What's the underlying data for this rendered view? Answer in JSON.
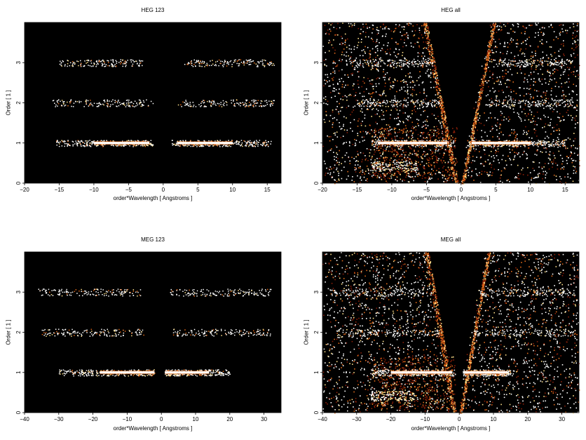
{
  "chart_data": [
    {
      "type": "heatmap",
      "title": "HEG 123",
      "xlabel": "order*Wavelength [ Angstroms ]",
      "ylabel": "Order [ 1 ]",
      "xlim": [
        -20,
        17
      ],
      "ylim": [
        0,
        4
      ],
      "xticks": [
        "−20",
        "−15",
        "−10",
        "−5",
        "0",
        "5",
        "10",
        "15"
      ],
      "xtick_values": [
        -20,
        -15,
        -10,
        -5,
        0,
        5,
        10,
        15
      ],
      "yticks": [
        "0",
        "1",
        "2",
        "3"
      ],
      "ytick_values": [
        0,
        1,
        2,
        3
      ],
      "bands": [
        {
          "order": 1,
          "x_ranges": [
            [
              -15.5,
              -1.5
            ],
            [
              1.2,
              15.5
            ]
          ],
          "bright_ranges": [
            [
              -10,
              -2
            ],
            [
              2,
              10
            ]
          ]
        },
        {
          "order": 2,
          "x_ranges": [
            [
              -16,
              -1.5
            ],
            [
              2,
              16
            ]
          ],
          "bright_ranges": []
        },
        {
          "order": 3,
          "x_ranges": [
            [
              -15,
              -3
            ],
            [
              3,
              16
            ]
          ],
          "bright_ranges": []
        }
      ],
      "background": "none"
    },
    {
      "type": "heatmap",
      "title": "HEG all",
      "xlabel": "order*Wavelength [ Angstroms ]",
      "ylabel": "Order [ 1 ]",
      "xlim": [
        -20,
        17
      ],
      "ylim": [
        0,
        4
      ],
      "xticks": [
        "−20",
        "−15",
        "−10",
        "−5",
        "0",
        "5",
        "10",
        "15"
      ],
      "xtick_values": [
        -20,
        -15,
        -10,
        -5,
        0,
        5,
        10,
        15
      ],
      "yticks": [
        "0",
        "1",
        "2",
        "3"
      ],
      "ytick_values": [
        0,
        1,
        2,
        3
      ],
      "bands": [
        {
          "order": 1,
          "x_ranges": [
            [
              -13,
              -1
            ],
            [
              1,
              15
            ]
          ],
          "bright_ranges": [
            [
              -12,
              -2
            ],
            [
              1.5,
              10
            ]
          ]
        },
        {
          "order": 2,
          "x_ranges": [
            [
              -15,
              -3
            ],
            [
              4,
              16
            ]
          ],
          "bright_ranges": []
        },
        {
          "order": 3,
          "x_ranges": [
            [
              -16,
              -4
            ],
            [
              5,
              16
            ]
          ],
          "bright_ranges": []
        }
      ],
      "background": "scatter"
    },
    {
      "type": "heatmap",
      "title": "MEG 123",
      "xlabel": "order*Wavelength [ Angstroms ]",
      "ylabel": "Order [ 1 ]",
      "xlim": [
        -40,
        35
      ],
      "ylim": [
        0,
        4
      ],
      "xticks": [
        "−40",
        "−30",
        "−20",
        "−10",
        "0",
        "10",
        "20",
        "30"
      ],
      "xtick_values": [
        -40,
        -30,
        -20,
        -10,
        0,
        10,
        20,
        30
      ],
      "yticks": [
        "0",
        "1",
        "2",
        "3"
      ],
      "ytick_values": [
        0,
        1,
        2,
        3
      ],
      "bands": [
        {
          "order": 1,
          "x_ranges": [
            [
              -30,
              -2
            ],
            [
              1,
              20
            ]
          ],
          "bright_ranges": [
            [
              -18,
              -2
            ],
            [
              1,
              14
            ]
          ]
        },
        {
          "order": 2,
          "x_ranges": [
            [
              -35,
              -5
            ],
            [
              3,
              32
            ]
          ],
          "bright_ranges": []
        },
        {
          "order": 3,
          "x_ranges": [
            [
              -36,
              -6
            ],
            [
              2,
              32
            ]
          ],
          "bright_ranges": []
        }
      ],
      "background": "none"
    },
    {
      "type": "heatmap",
      "title": "MEG all",
      "xlabel": "order*Wavelength [ Angstroms ]",
      "ylabel": "Order [ 1 ]",
      "xlim": [
        -40,
        35
      ],
      "ylim": [
        0,
        4
      ],
      "xticks": [
        "−40",
        "−30",
        "−20",
        "−10",
        "0",
        "10",
        "20",
        "30"
      ],
      "xtick_values": [
        -40,
        -30,
        -20,
        -10,
        0,
        10,
        20,
        30
      ],
      "yticks": [
        "0",
        "1",
        "2",
        "3"
      ],
      "ytick_values": [
        0,
        1,
        2,
        3
      ],
      "bands": [
        {
          "order": 1,
          "x_ranges": [
            [
              -26,
              -1
            ],
            [
              1,
              15
            ]
          ],
          "bright_ranges": [
            [
              -20,
              -2
            ],
            [
              1.5,
              14
            ]
          ]
        },
        {
          "order": 2,
          "x_ranges": [
            [
              -36,
              -6
            ],
            [
              4,
              34
            ]
          ],
          "bright_ranges": []
        },
        {
          "order": 3,
          "x_ranges": [
            [
              -38,
              -8
            ],
            [
              6,
              34
            ]
          ],
          "bright_ranges": []
        }
      ],
      "background": "scatter"
    }
  ],
  "colors": {
    "plot_background": "#000000",
    "hot_white": "#ffffff",
    "hot_yellow": "#ffe08a",
    "hot_orange": "#e06a1a",
    "hot_red": "#8a1f08"
  }
}
